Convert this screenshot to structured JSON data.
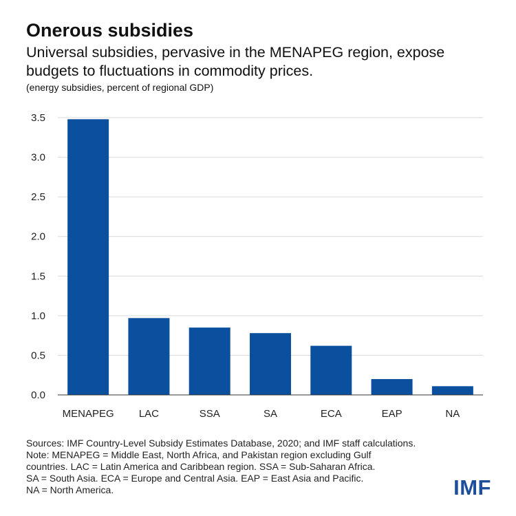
{
  "header": {
    "title": "Onerous subsidies",
    "subtitle": "Universal subsidies, pervasive in the MENAPEG region, expose budgets to fluctuations in commodity prices.",
    "unit_note": "(energy subsidies, percent of regional GDP)"
  },
  "chart_data": {
    "type": "bar",
    "categories": [
      "MENAPEG",
      "LAC",
      "SSA",
      "SA",
      "ECA",
      "EAP",
      "NA"
    ],
    "values": [
      3.48,
      0.97,
      0.85,
      0.78,
      0.62,
      0.2,
      0.11
    ],
    "yticks": [
      "0.0",
      "0.5",
      "1.0",
      "1.5",
      "2.0",
      "2.5",
      "3.0",
      "3.5"
    ],
    "ylim": [
      0,
      3.5
    ],
    "grid": true,
    "bar_color": "#0b4f9f",
    "gridline_color": "#d9d9d9"
  },
  "footer": {
    "notes": [
      "Sources: IMF Country-Level Subsidy Estimates Database, 2020; and IMF staff calculations.",
      "Note: MENAPEG = Middle East, North Africa, and Pakistan region excluding Gulf",
      "countries. LAC = Latin America and Caribbean region. SSA = Sub-Saharan Africa.",
      "SA = South Asia. ECA = Europe and Central Asia. EAP = East Asia and Pacific.",
      "NA = North America."
    ],
    "logo_text": "IMF",
    "logo_color": "#1d4f9d"
  }
}
